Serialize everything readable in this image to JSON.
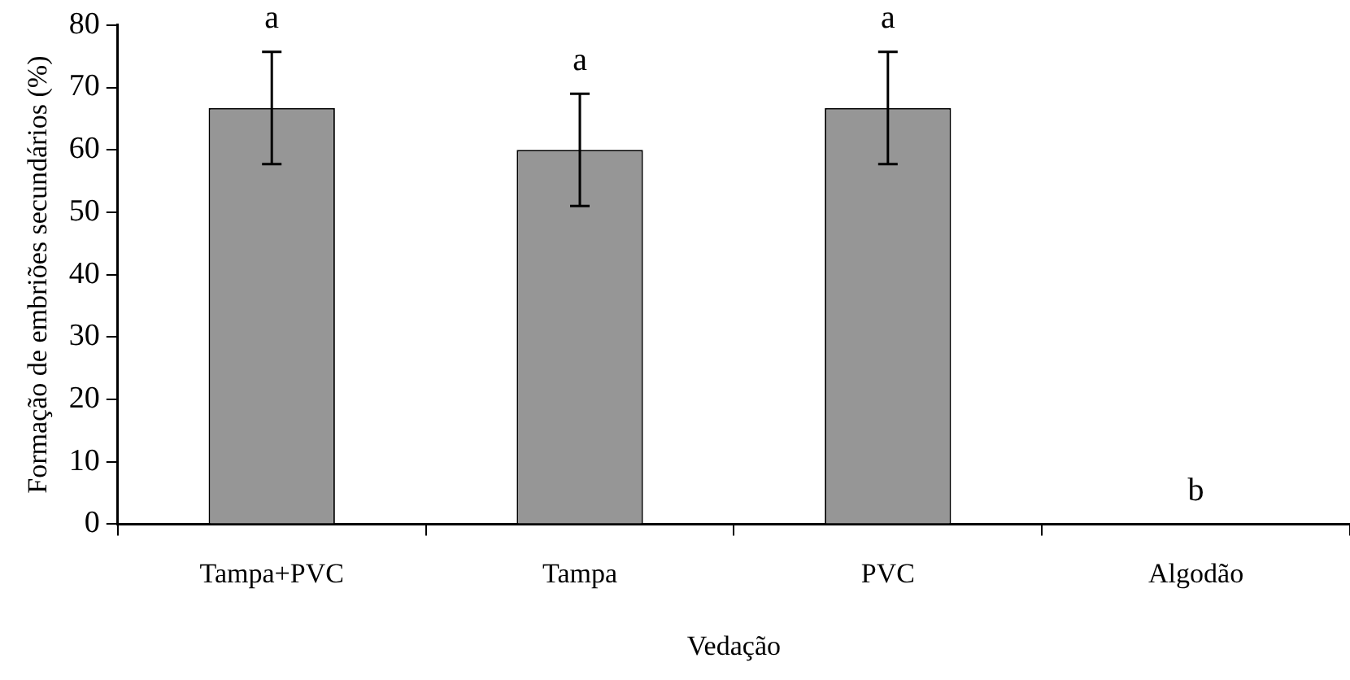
{
  "chart_data": {
    "type": "bar",
    "xlabel": "Vedação",
    "ylabel": "Formação de embriões secundários (%)",
    "categories": [
      "Tampa+PVC",
      "Tampa",
      "PVC",
      "Algodão"
    ],
    "values": [
      66.7,
      60,
      66.7,
      0
    ],
    "errors": [
      9,
      9,
      9,
      0
    ],
    "color": "#969696",
    "ylim": [
      0,
      80
    ],
    "yticks": [
      0,
      10,
      20,
      30,
      40,
      50,
      60,
      70,
      80
    ],
    "grid": false,
    "legend": false,
    "annotations": [
      {
        "text": "a",
        "x": "Tampa+PVC",
        "y": 75.7
      },
      {
        "text": "a",
        "x": "Tampa",
        "y": 69
      },
      {
        "text": "a",
        "x": "PVC",
        "y": 75.7
      },
      {
        "text": "b",
        "x": "Algodão",
        "y": 0
      }
    ]
  }
}
